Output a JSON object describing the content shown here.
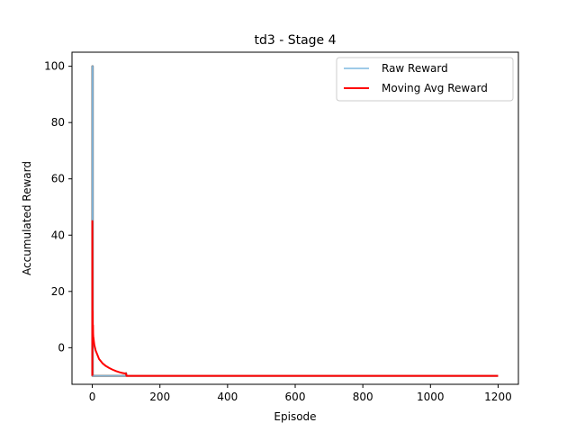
{
  "chart_data": {
    "type": "line",
    "title": "td3 - Stage 4",
    "xlabel": "Episode",
    "ylabel": "Accumulated Reward",
    "xlim": [
      -60,
      1260
    ],
    "ylim": [
      -13,
      105
    ],
    "xticks": [
      0,
      200,
      400,
      600,
      800,
      1000,
      1200
    ],
    "yticks": [
      0,
      20,
      40,
      60,
      80,
      100
    ],
    "grid": false,
    "legend_position": "top-right",
    "series": [
      {
        "name": "Raw Reward",
        "color": "#7fb8e0",
        "overlay_color": "#808080",
        "x": [
          0,
          0,
          0.5,
          0.5,
          1,
          1,
          1.5,
          1.5,
          2,
          2,
          3,
          100,
          100,
          101,
          150,
          300,
          600,
          900,
          1200
        ],
        "y": [
          -10,
          100,
          100,
          -10,
          -10,
          100,
          100,
          -10,
          -10,
          -10,
          -10,
          -10,
          -9,
          -10,
          -10,
          -10,
          -10,
          -10,
          -10
        ]
      },
      {
        "name": "Moving Avg Reward",
        "color": "#ff0000",
        "x": [
          0,
          0,
          0.3,
          0.6,
          1,
          1.5,
          2,
          2.5,
          3,
          4,
          5,
          6,
          8,
          10,
          15,
          20,
          30,
          40,
          50,
          60,
          70,
          80,
          90,
          100,
          101,
          150,
          300,
          600,
          900,
          1200
        ],
        "y": [
          -10,
          45,
          30,
          12,
          13,
          4,
          8,
          5,
          4,
          3,
          2,
          1,
          0,
          -1,
          -2.5,
          -4,
          -5.5,
          -6.5,
          -7.2,
          -7.8,
          -8.3,
          -8.7,
          -9.0,
          -9.2,
          -10,
          -10,
          -10,
          -10,
          -10,
          -10
        ]
      }
    ]
  }
}
